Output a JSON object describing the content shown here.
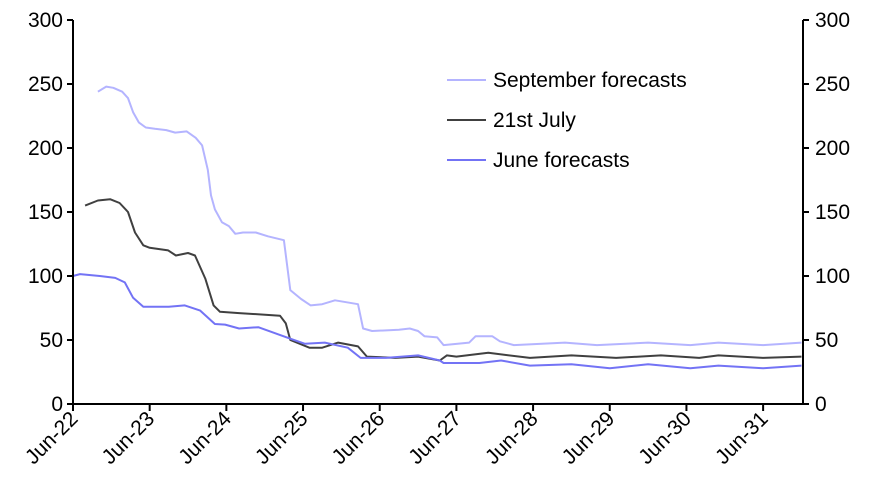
{
  "chart_data": {
    "type": "line",
    "title": "",
    "xlabel": "",
    "ylabel": "",
    "x_unit": "months since Jun-22",
    "ylim": [
      0,
      300
    ],
    "yticks": [
      0,
      50,
      100,
      150,
      200,
      250,
      300
    ],
    "xticks": [
      "Jun-22",
      "Jun-23",
      "Jun-24",
      "Jun-25",
      "Jun-26",
      "Jun-27",
      "Jun-28",
      "Jun-29",
      "Jun-30",
      "Jun-31"
    ],
    "xlim_months": [
      0,
      114
    ],
    "grid": false,
    "legend_position": "top-right",
    "series": [
      {
        "name": "September forecasts",
        "color": "#b4b4ff",
        "points": [
          [
            3.9,
            244
          ],
          [
            5.2,
            248
          ],
          [
            6.3,
            247
          ],
          [
            7.7,
            244
          ],
          [
            8.6,
            239
          ],
          [
            9.4,
            228
          ],
          [
            10.3,
            220
          ],
          [
            11.4,
            216
          ],
          [
            12.8,
            215
          ],
          [
            14.6,
            214
          ],
          [
            16,
            212
          ],
          [
            17.8,
            213
          ],
          [
            19.2,
            208
          ],
          [
            20.2,
            202
          ],
          [
            21.1,
            183
          ],
          [
            21.6,
            163
          ],
          [
            22.2,
            152
          ],
          [
            23.3,
            142
          ],
          [
            24.4,
            139
          ],
          [
            25.4,
            133
          ],
          [
            26.6,
            134
          ],
          [
            28.6,
            134
          ],
          [
            30.5,
            131
          ],
          [
            33,
            128
          ],
          [
            34,
            89
          ],
          [
            35.7,
            82
          ],
          [
            37.2,
            77
          ],
          [
            39,
            78
          ],
          [
            41,
            81
          ],
          [
            44.6,
            78
          ],
          [
            45.4,
            59
          ],
          [
            46.8,
            57
          ],
          [
            51,
            58
          ],
          [
            52.7,
            59
          ],
          [
            54,
            57
          ],
          [
            55,
            53
          ],
          [
            57,
            52
          ],
          [
            58,
            46
          ],
          [
            62,
            48
          ],
          [
            63,
            53
          ],
          [
            65.6,
            53
          ],
          [
            66.8,
            49
          ],
          [
            69,
            46
          ],
          [
            77,
            48
          ],
          [
            82,
            46
          ],
          [
            90,
            48
          ],
          [
            96.6,
            46
          ],
          [
            101,
            48
          ],
          [
            108,
            46
          ],
          [
            114,
            48
          ]
        ]
      },
      {
        "name": "21st July",
        "color": "#404040",
        "points": [
          [
            1.9,
            155
          ],
          [
            3.9,
            159
          ],
          [
            5.8,
            160
          ],
          [
            7.3,
            157
          ],
          [
            8.6,
            150
          ],
          [
            9.7,
            134
          ],
          [
            11,
            124
          ],
          [
            12,
            122
          ],
          [
            14.9,
            120
          ],
          [
            16.1,
            116
          ],
          [
            18,
            118
          ],
          [
            19.1,
            116
          ],
          [
            20.7,
            98
          ],
          [
            22,
            77
          ],
          [
            23,
            72
          ],
          [
            26,
            71
          ],
          [
            32.4,
            69
          ],
          [
            33.3,
            63
          ],
          [
            34,
            50
          ],
          [
            37,
            44
          ],
          [
            39,
            44
          ],
          [
            41.5,
            48
          ],
          [
            44.6,
            45
          ],
          [
            46,
            37
          ],
          [
            50.4,
            36
          ],
          [
            54,
            37
          ],
          [
            57.4,
            34
          ],
          [
            58.5,
            38
          ],
          [
            60,
            37
          ],
          [
            65,
            40
          ],
          [
            71.5,
            36
          ],
          [
            78,
            38
          ],
          [
            85,
            36
          ],
          [
            92,
            38
          ],
          [
            98,
            36
          ],
          [
            101,
            38
          ],
          [
            108,
            36
          ],
          [
            114,
            37
          ]
        ]
      },
      {
        "name": "June forecasts",
        "color": "#7373f5",
        "points": [
          [
            0,
            100
          ],
          [
            1.1,
            101.5
          ],
          [
            4.2,
            100
          ],
          [
            6.6,
            98.5
          ],
          [
            8.1,
            95
          ],
          [
            9.4,
            83
          ],
          [
            11,
            76
          ],
          [
            15,
            76
          ],
          [
            17.5,
            77
          ],
          [
            19.9,
            73
          ],
          [
            22.2,
            62.5
          ],
          [
            23.8,
            62
          ],
          [
            26,
            59
          ],
          [
            29,
            60
          ],
          [
            34,
            51
          ],
          [
            36.3,
            47
          ],
          [
            39.4,
            48
          ],
          [
            43,
            44
          ],
          [
            45,
            36
          ],
          [
            49,
            36
          ],
          [
            54,
            38
          ],
          [
            57.4,
            34
          ],
          [
            58,
            32
          ],
          [
            63.6,
            32
          ],
          [
            67,
            34
          ],
          [
            71.5,
            30
          ],
          [
            78,
            31
          ],
          [
            84,
            28
          ],
          [
            90,
            31
          ],
          [
            96.6,
            28
          ],
          [
            101,
            30
          ],
          [
            108,
            28
          ],
          [
            114,
            30
          ]
        ]
      }
    ]
  }
}
